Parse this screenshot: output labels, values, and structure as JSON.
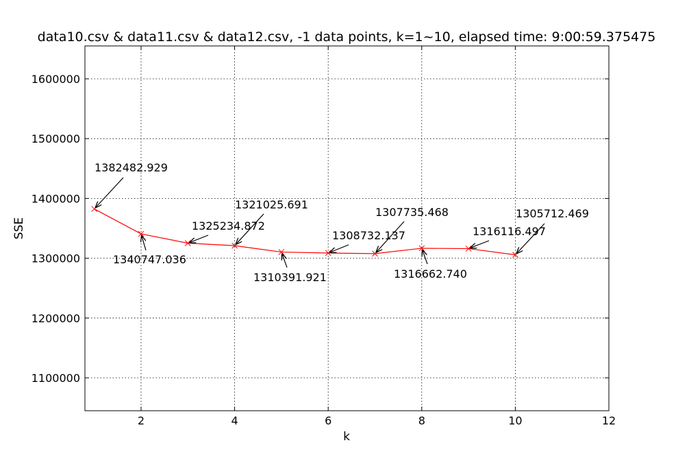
{
  "chart_data": {
    "type": "line",
    "title": "data10.csv & data11.csv & data12.csv, -1 data points, k=1~10, elapsed time: 9:00:59.375475",
    "xlabel": "k",
    "ylabel": "SSE",
    "xlim": [
      0.8,
      12
    ],
    "ylim": [
      1045000,
      1655000
    ],
    "xticks": [
      2,
      4,
      6,
      8,
      10,
      12
    ],
    "yticks": [
      1100000,
      1200000,
      1300000,
      1400000,
      1500000,
      1600000
    ],
    "grid": true,
    "line_color": "#ff0000",
    "marker": "x",
    "x": [
      1,
      2,
      3,
      4,
      5,
      6,
      7,
      8,
      9,
      10
    ],
    "values": [
      1382482.929,
      1340747.036,
      1325234.872,
      1321025.691,
      1310391.921,
      1308732.137,
      1307735.468,
      1316662.74,
      1316116.497,
      1305712.469
    ],
    "annotations": [
      {
        "text": "1382482.929",
        "x": 1,
        "y": 1382482.929
      },
      {
        "text": "1340747.036",
        "x": 2,
        "y": 1340747.036
      },
      {
        "text": "1325234.872",
        "x": 3,
        "y": 1325234.872
      },
      {
        "text": "1321025.691",
        "x": 4,
        "y": 1321025.691
      },
      {
        "text": "1310391.921",
        "x": 5,
        "y": 1310391.921
      },
      {
        "text": "1308732.137",
        "x": 6,
        "y": 1308732.137
      },
      {
        "text": "1307735.468",
        "x": 7,
        "y": 1307735.468
      },
      {
        "text": "1316662.740",
        "x": 8,
        "y": 1316662.74
      },
      {
        "text": "1316116.497",
        "x": 9,
        "y": 1316116.497
      },
      {
        "text": "1305712.469",
        "x": 10,
        "y": 1305712.469
      }
    ]
  }
}
